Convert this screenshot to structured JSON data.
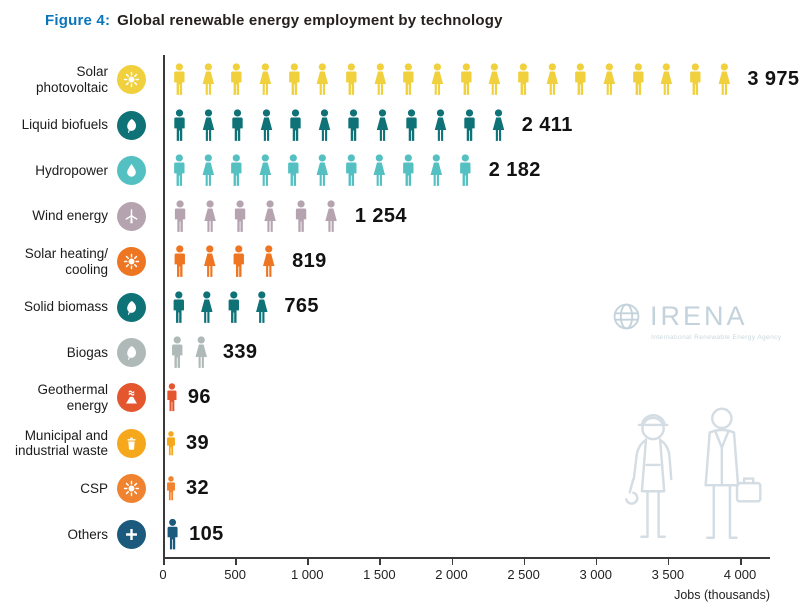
{
  "title": {
    "prefix": "Figure 4:",
    "text": "Global renewable energy employment by technology"
  },
  "watermark": {
    "name": "IRENA",
    "subtitle": "International Renewable Energy Agency"
  },
  "chart_data": {
    "type": "bar",
    "subtype": "pictogram",
    "title": "Global renewable energy employment by technology",
    "xlabel": "Jobs (thousands)",
    "ylabel": "",
    "xlim": [
      0,
      4000
    ],
    "grid": false,
    "legend_position": "none",
    "unit_per_pictogram": 200,
    "ticks": [
      {
        "value": 0,
        "label": "0"
      },
      {
        "value": 500,
        "label": "500"
      },
      {
        "value": 1000,
        "label": "1 000"
      },
      {
        "value": 1500,
        "label": "1 500"
      },
      {
        "value": 2000,
        "label": "2 000"
      },
      {
        "value": 2500,
        "label": "2 500"
      },
      {
        "value": 3000,
        "label": "3 000"
      },
      {
        "value": 3500,
        "label": "3 500"
      },
      {
        "value": 4000,
        "label": "4 000"
      }
    ],
    "rows": [
      {
        "label": "Solar photovoltaic",
        "value": 3975,
        "value_label": "3 975",
        "color": "#F0D03C",
        "icon": "sun-icon"
      },
      {
        "label": "Liquid biofuels",
        "value": 2411,
        "value_label": "2 411",
        "color": "#0E7277",
        "icon": "leaf-icon"
      },
      {
        "label": "Hydropower",
        "value": 2182,
        "value_label": "2 182",
        "color": "#54C0C2",
        "icon": "droplet-icon"
      },
      {
        "label": "Wind energy",
        "value": 1254,
        "value_label": "1 254",
        "color": "#B5A4B0",
        "icon": "wind-turbine-icon"
      },
      {
        "label": "Solar heating/ cooling",
        "value": 819,
        "value_label": "819",
        "color": "#EE7623",
        "icon": "sun-icon"
      },
      {
        "label": "Solid biomass",
        "value": 765,
        "value_label": "765",
        "color": "#0E7277",
        "icon": "leaf-icon"
      },
      {
        "label": "Biogas",
        "value": 339,
        "value_label": "339",
        "color": "#AFB9B8",
        "icon": "leaf-icon"
      },
      {
        "label": "Geothermal energy",
        "value": 96,
        "value_label": "96",
        "color": "#E4572E",
        "icon": "geothermal-icon"
      },
      {
        "label": "Municipal and industrial waste",
        "value": 39,
        "value_label": "39",
        "color": "#F6A81C",
        "icon": "trash-icon"
      },
      {
        "label": "CSP",
        "value": 32,
        "value_label": "32",
        "color": "#F0832F",
        "icon": "csp-sun-icon"
      },
      {
        "label": "Others",
        "value": 105,
        "value_label": "105",
        "color": "#1B5A7D",
        "icon": "plus-icon"
      }
    ]
  }
}
